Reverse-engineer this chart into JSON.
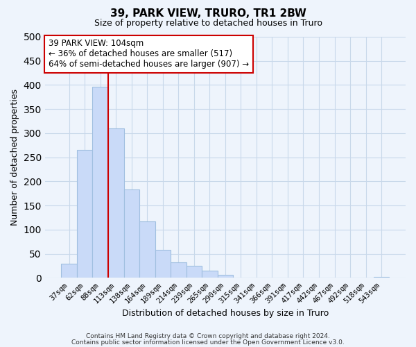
{
  "title": "39, PARK VIEW, TRURO, TR1 2BW",
  "subtitle": "Size of property relative to detached houses in Truro",
  "xlabel": "Distribution of detached houses by size in Truro",
  "ylabel": "Number of detached properties",
  "bar_color": "#c9daf8",
  "bar_edge_color": "#a0bfe0",
  "categories": [
    "37sqm",
    "62sqm",
    "88sqm",
    "113sqm",
    "138sqm",
    "164sqm",
    "189sqm",
    "214sqm",
    "239sqm",
    "265sqm",
    "290sqm",
    "315sqm",
    "341sqm",
    "366sqm",
    "391sqm",
    "417sqm",
    "442sqm",
    "467sqm",
    "492sqm",
    "518sqm",
    "543sqm"
  ],
  "values": [
    29,
    265,
    397,
    310,
    183,
    117,
    58,
    32,
    25,
    15,
    7,
    0,
    0,
    0,
    0,
    0,
    0,
    0,
    0,
    0,
    2
  ],
  "vline_color": "#cc0000",
  "vline_x_index": 2,
  "annotation_lines": [
    "39 PARK VIEW: 104sqm",
    "← 36% of detached houses are smaller (517)",
    "64% of semi-detached houses are larger (907) →"
  ],
  "ylim": [
    0,
    500
  ],
  "yticks": [
    0,
    50,
    100,
    150,
    200,
    250,
    300,
    350,
    400,
    450,
    500
  ],
  "grid_color": "#c8d8ea",
  "background_color": "#eef4fc",
  "footer_line1": "Contains HM Land Registry data © Crown copyright and database right 2024.",
  "footer_line2": "Contains public sector information licensed under the Open Government Licence v3.0."
}
